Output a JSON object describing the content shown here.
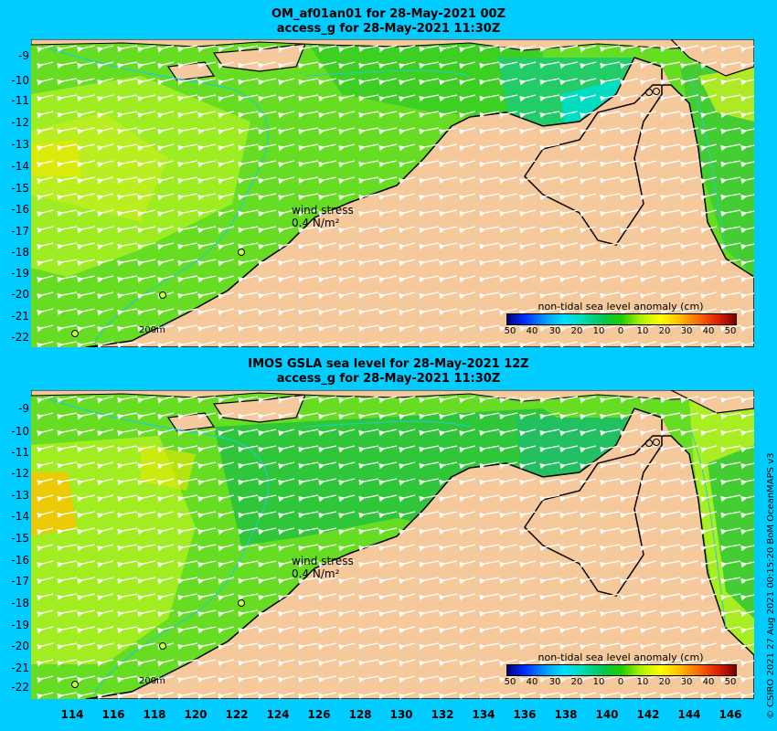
{
  "panels": [
    {
      "title_line1": "OM_af01an01 for 28-May-2021 00Z",
      "title_line2": "access_g for 28-May-2021 11:30Z"
    },
    {
      "title_line1": "IMOS GSLA sea level  for 28-May-2021 12Z",
      "title_line2": "access_g for 28-May-2021 11:30Z"
    }
  ],
  "map": {
    "lon_range": [
      111.8,
      147.0
    ],
    "lat_range": [
      -22.5,
      -8.6
    ],
    "lat_ticks": [
      "-9",
      "-10",
      "-11",
      "-12",
      "-13",
      "-14",
      "-15",
      "-16",
      "-17",
      "-18",
      "-19",
      "-20",
      "-21",
      "-22"
    ],
    "lon_ticks": [
      "114",
      "116",
      "118",
      "120",
      "122",
      "124",
      "126",
      "128",
      "130",
      "132",
      "134",
      "136",
      "138",
      "140",
      "142",
      "144",
      "146"
    ],
    "wind_label_line1": "wind stress",
    "wind_label_line2": "0.4 N/m²",
    "contour_label": "200m",
    "sea_color": "#5de01e",
    "land_color": "#f5c99c"
  },
  "legend": {
    "title": "non-tidal sea level anomaly (cm)",
    "labels": [
      "50",
      "40",
      "30",
      "20",
      "10",
      "0",
      "10",
      "20",
      "30",
      "40",
      "50"
    ]
  },
  "credit": "© CSIRO 2021  27 Aug 2021 00:15:20 BoM OceanMAPS v3"
}
